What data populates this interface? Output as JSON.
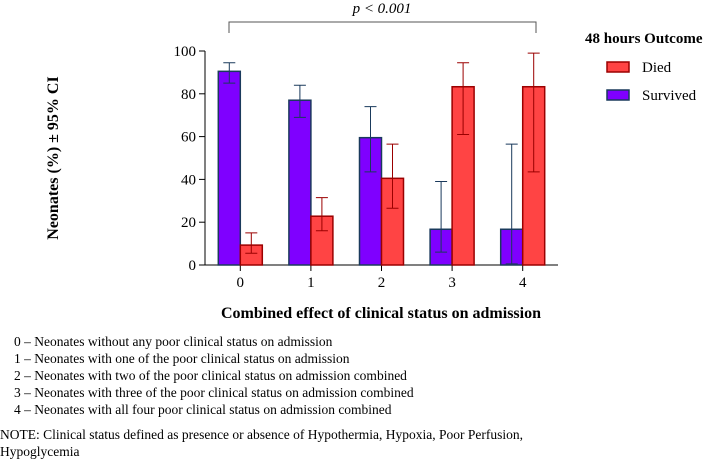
{
  "chart_data": {
    "type": "bar",
    "title": "",
    "annotation": "p < 0.001",
    "xlabel": "Combined effect of clinical status on admission",
    "ylabel": "Neonates (%) ± 95% CI",
    "ylim": [
      0,
      100
    ],
    "yticks": [
      "0",
      "20",
      "40",
      "60",
      "80",
      "100"
    ],
    "categories": [
      "0",
      "1",
      "2",
      "3",
      "4"
    ],
    "legend": {
      "title": "48 hours Outcome",
      "placement": "right",
      "entries": [
        "Died",
        "Survived"
      ]
    },
    "series": [
      {
        "name": "Survived",
        "color": "#7f00ff",
        "edge": "#1a3a5c",
        "values": [
          90.5,
          77,
          59.5,
          16.7,
          16.7
        ],
        "ci_low": [
          85,
          69,
          43.5,
          6,
          0.5
        ],
        "ci_high": [
          94.5,
          84,
          74,
          39,
          56.5
        ]
      },
      {
        "name": "Died",
        "color": "#ff4444",
        "edge": "#9b0000",
        "values": [
          9.3,
          22.8,
          40.5,
          83.3,
          83.3
        ],
        "ci_low": [
          5.5,
          16,
          26.5,
          61,
          43.5
        ],
        "ci_high": [
          15,
          31.5,
          56.5,
          94.5,
          99
        ]
      }
    ]
  },
  "notes": {
    "items": [
      "0 – Neonates without any poor clinical status on admission",
      "1 – Neonates with one of the poor clinical status on admission",
      "2 – Neonates with two of the poor clinical status on admission combined",
      "3 – Neonates with three of the poor clinical status on admission combined",
      "4 – Neonates with all four poor clinical status on admission combined"
    ],
    "note": "NOTE: Clinical status defined as presence or absence of Hypothermia, Hypoxia, Poor Perfusion, Hypoglycemia"
  }
}
